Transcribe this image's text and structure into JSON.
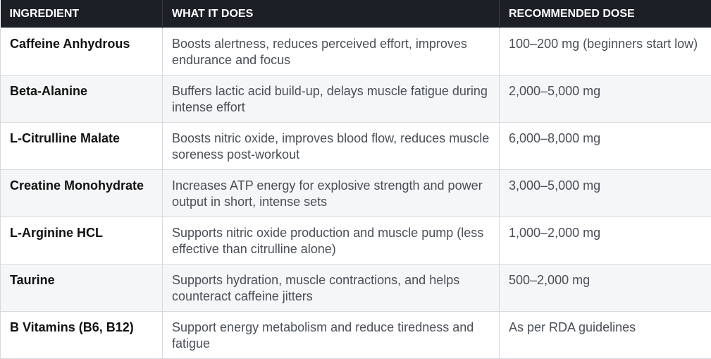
{
  "table": {
    "header": [
      "INGREDIENT",
      "WHAT IT DOES",
      "RECOMMENDED DOSE"
    ],
    "rows": [
      [
        "Caffeine Anhydrous",
        "Boosts alertness, reduces perceived effort, improves endurance and focus",
        "100–200 mg (beginners start low)"
      ],
      [
        "Beta-Alanine",
        "Buffers lactic acid build-up, delays muscle fatigue during intense effort",
        "2,000–5,000 mg"
      ],
      [
        "L-Citrulline Malate",
        "Boosts nitric oxide, improves blood flow, reduces muscle soreness post-workout",
        "6,000–8,000 mg"
      ],
      [
        "Creatine Monohydrate",
        "Increases ATP energy for explosive strength and power output in short, intense sets",
        "3,000–5,000 mg"
      ],
      [
        "L-Arginine HCL",
        "Supports nitric oxide production and muscle pump (less effective than citrulline alone)",
        "1,000–2,000 mg"
      ],
      [
        "Taurine",
        "Supports hydration, muscle contractions, and helps counteract caffeine jitters",
        "500–2,000 mg"
      ],
      [
        "B Vitamins (B6, B12)",
        "Support energy metabolism and reduce tiredness and fatigue",
        "As per RDA guidelines"
      ]
    ]
  }
}
